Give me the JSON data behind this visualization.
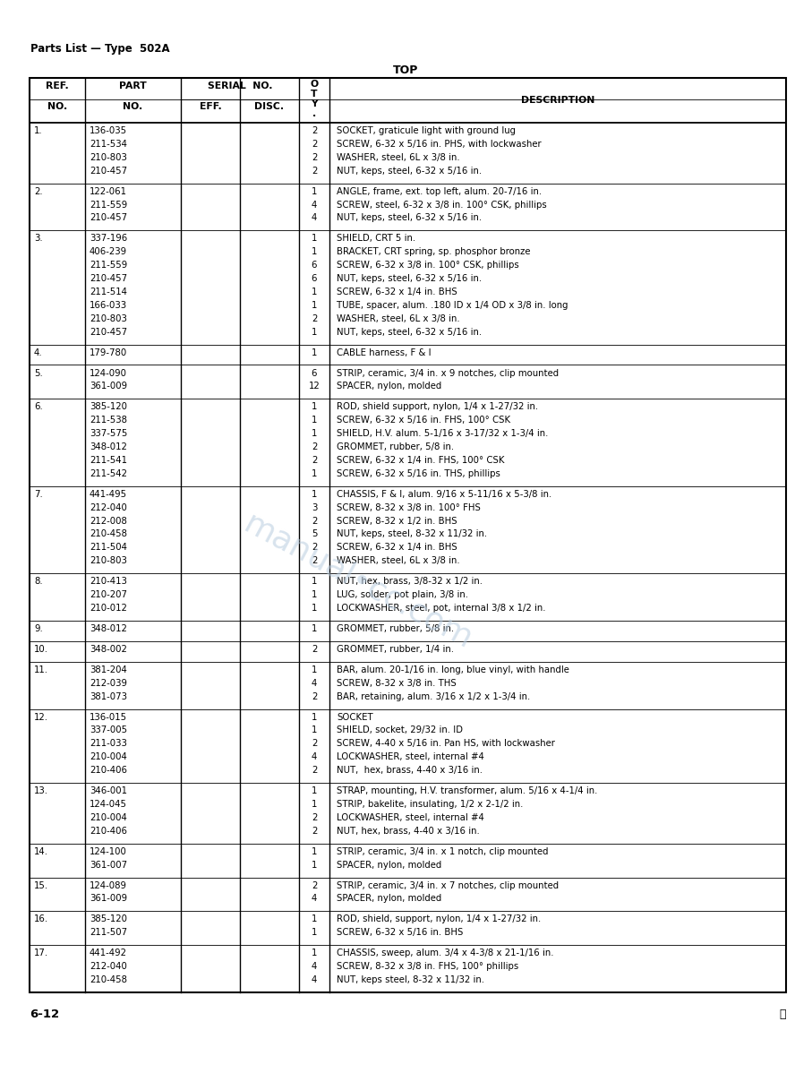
{
  "page_title": "Parts List — Type  502A",
  "section_title": "TOP",
  "footer_left": "6-12",
  "footer_right": "Ⓐ",
  "bg_color": "#ffffff",
  "text_color": "#000000",
  "watermark_color": "#b8ccdf",
  "watermark_text": "manual•cc.com",
  "rows": [
    {
      "ref": "1.",
      "parts": [
        "136-035",
        "211-534",
        "210-803",
        "210-457"
      ],
      "qty": [
        "2",
        "2",
        "2",
        "2"
      ],
      "desc": [
        "SOCKET, graticule light with ground lug",
        "SCREW, 6-32 x 5/16 in. PHS, with lockwasher",
        "WASHER, steel, 6L x 3/8 in.",
        "NUT, keps, steel, 6-32 x 5/16 in."
      ]
    },
    {
      "ref": "2.",
      "parts": [
        "122-061",
        "211-559",
        "210-457"
      ],
      "qty": [
        "1",
        "4",
        "4"
      ],
      "desc": [
        "ANGLE, frame, ext. top left, alum. 20-7/16 in.",
        "SCREW, steel, 6-32 x 3/8 in. 100° CSK, phillips",
        "NUT, keps, steel, 6-32 x 5/16 in."
      ]
    },
    {
      "ref": "3.",
      "parts": [
        "337-196",
        "406-239",
        "211-559",
        "210-457",
        "211-514",
        "166-033",
        "210-803",
        "210-457"
      ],
      "qty": [
        "1",
        "1",
        "6",
        "6",
        "1",
        "1",
        "2",
        "1"
      ],
      "desc": [
        "SHIELD, CRT 5 in.",
        "BRACKET, CRT spring, sp. phosphor bronze",
        "SCREW, 6-32 x 3/8 in. 100° CSK, phillips",
        "NUT, keps, steel, 6-32 x 5/16 in.",
        "SCREW, 6-32 x 1/4 in. BHS",
        "TUBE, spacer, alum. .180 ID x 1/4 OD x 3/8 in. long",
        "WASHER, steel, 6L x 3/8 in.",
        "NUT, keps, steel, 6-32 x 5/16 in."
      ]
    },
    {
      "ref": "4.",
      "parts": [
        "179-780"
      ],
      "qty": [
        "1"
      ],
      "desc": [
        "CABLE harness, F & I"
      ]
    },
    {
      "ref": "5.",
      "parts": [
        "124-090",
        "361-009"
      ],
      "qty": [
        "6",
        "12"
      ],
      "desc": [
        "STRIP, ceramic, 3/4 in. x 9 notches, clip mounted",
        "SPACER, nylon, molded"
      ]
    },
    {
      "ref": "6.",
      "parts": [
        "385-120",
        "211-538",
        "337-575",
        "348-012",
        "211-541",
        "211-542"
      ],
      "qty": [
        "1",
        "1",
        "1",
        "2",
        "2",
        "1"
      ],
      "desc": [
        "ROD, shield support, nylon, 1/4 x 1-27/32 in.",
        "SCREW, 6-32 x 5/16 in. FHS, 100° CSK",
        "SHIELD, H.V. alum. 5-1/16 x 3-17/32 x 1-3/4 in.",
        "GROMMET, rubber, 5/8 in.",
        "SCREW, 6-32 x 1/4 in. FHS, 100° CSK",
        "SCREW, 6-32 x 5/16 in. THS, phillips"
      ]
    },
    {
      "ref": "7.",
      "parts": [
        "441-495",
        "212-040",
        "212-008",
        "210-458",
        "211-504",
        "210-803"
      ],
      "qty": [
        "1",
        "3",
        "2",
        "5",
        "2",
        "2"
      ],
      "desc": [
        "CHASSIS, F & I, alum. 9/16 x 5-11/16 x 5-3/8 in.",
        "SCREW, 8-32 x 3/8 in. 100° FHS",
        "SCREW, 8-32 x 1/2 in. BHS",
        "NUT, keps, steel, 8-32 x 11/32 in.",
        "SCREW, 6-32 x 1/4 in. BHS",
        "WASHER, steel, 6L x 3/8 in."
      ]
    },
    {
      "ref": "8.",
      "parts": [
        "210-413",
        "210-207",
        "210-012"
      ],
      "qty": [
        "1",
        "1",
        "1"
      ],
      "desc": [
        "NUT, hex, brass, 3/8-32 x 1/2 in.",
        "LUG, solder, pot plain, 3/8 in.",
        "LOCKWASHER, steel, pot, internal 3/8 x 1/2 in."
      ]
    },
    {
      "ref": "9.",
      "parts": [
        "348-012"
      ],
      "qty": [
        "1"
      ],
      "desc": [
        "GROMMET, rubber, 5/8 in."
      ]
    },
    {
      "ref": "10.",
      "parts": [
        "348-002"
      ],
      "qty": [
        "2"
      ],
      "desc": [
        "GROMMET, rubber, 1/4 in."
      ]
    },
    {
      "ref": "11.",
      "parts": [
        "381-204",
        "212-039",
        "381-073"
      ],
      "qty": [
        "1",
        "4",
        "2"
      ],
      "desc": [
        "BAR, alum. 20-1/16 in. long, blue vinyl, with handle",
        "SCREW, 8-32 x 3/8 in. THS",
        "BAR, retaining, alum. 3/16 x 1/2 x 1-3/4 in."
      ]
    },
    {
      "ref": "12.",
      "parts": [
        "136-015",
        "337-005",
        "211-033",
        "210-004",
        "210-406"
      ],
      "qty": [
        "1",
        "1",
        "2",
        "4",
        "2"
      ],
      "desc": [
        "SOCKET",
        "SHIELD, socket, 29/32 in. ID",
        "SCREW, 4-40 x 5/16 in. Pan HS, with lockwasher",
        "LOCKWASHER, steel, internal #4",
        "NUT,  hex, brass, 4-40 x 3/16 in."
      ]
    },
    {
      "ref": "13.",
      "parts": [
        "346-001",
        "124-045",
        "210-004",
        "210-406"
      ],
      "qty": [
        "1",
        "1",
        "2",
        "2"
      ],
      "desc": [
        "STRAP, mounting, H.V. transformer, alum. 5/16 x 4-1/4 in.",
        "STRIP, bakelite, insulating, 1/2 x 2-1/2 in.",
        "LOCKWASHER, steel, internal #4",
        "NUT, hex, brass, 4-40 x 3/16 in."
      ]
    },
    {
      "ref": "14.",
      "parts": [
        "124-100",
        "361-007"
      ],
      "qty": [
        "1",
        "1"
      ],
      "desc": [
        "STRIP, ceramic, 3/4 in. x 1 notch, clip mounted",
        "SPACER, nylon, molded"
      ]
    },
    {
      "ref": "15.",
      "parts": [
        "124-089",
        "361-009"
      ],
      "qty": [
        "2",
        "4"
      ],
      "desc": [
        "STRIP, ceramic, 3/4 in. x 7 notches, clip mounted",
        "SPACER, nylon, molded"
      ]
    },
    {
      "ref": "16.",
      "parts": [
        "385-120",
        "211-507"
      ],
      "qty": [
        "1",
        "1"
      ],
      "desc": [
        "ROD, shield, support, nylon, 1/4 x 1-27/32 in.",
        "SCREW, 6-32 x 5/16 in. BHS"
      ]
    },
    {
      "ref": "17.",
      "parts": [
        "441-492",
        "212-040",
        "210-458"
      ],
      "qty": [
        "1",
        "4",
        "4"
      ],
      "desc": [
        "CHASSIS, sweep, alum. 3/4 x 4-3/8 x 21-1/16 in.",
        "SCREW, 8-32 x 3/8 in. FHS, 100° phillips",
        "NUT, keps steel, 8-32 x 11/32 in."
      ]
    }
  ]
}
